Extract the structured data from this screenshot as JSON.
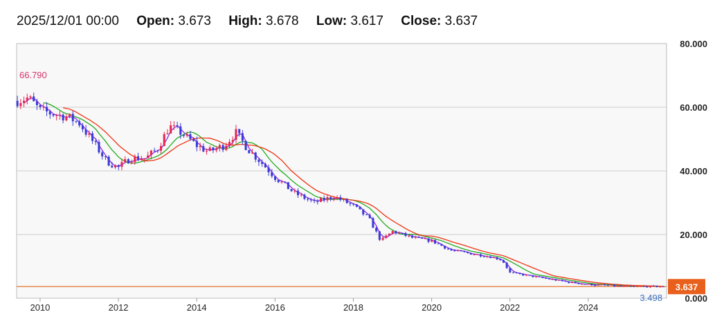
{
  "ohlc": {
    "date": "2025/12/01 00:00",
    "open_label": "Open:",
    "open": "3.673",
    "high_label": "High:",
    "high": "3.678",
    "low_label": "Low:",
    "low": "3.617",
    "close_label": "Close:",
    "close": "3.637"
  },
  "chart_data": {
    "type": "candlestick",
    "ylim": [
      0,
      80
    ],
    "y_ticks": [
      "80.000",
      "60.000",
      "40.000",
      "20.000",
      "0.000"
    ],
    "y_tick_values": [
      80,
      60,
      40,
      20,
      0
    ],
    "x_ticks": [
      "2010",
      "2012",
      "2014",
      "2016",
      "2018",
      "2020",
      "2022",
      "2024"
    ],
    "x_tick_values": [
      2010,
      2012,
      2014,
      2016,
      2018,
      2020,
      2022,
      2024
    ],
    "xlim": [
      2009.4,
      2026.0
    ],
    "grid": true,
    "last_price_label": "3.637",
    "last_price": 3.637,
    "max_label": "66.790",
    "max_value": 66.79,
    "max_x": 2009.7,
    "min_label": "3.498",
    "min_value": 3.498,
    "min_x": 2025.0,
    "colors": {
      "up": "#e8274f",
      "down": "#3b3bd6",
      "ma_short": "#8a2be2",
      "ma_mid": "#22aa22",
      "ma_long": "#ee3311",
      "last_line": "#e5732a",
      "last_badge": "#e8601c",
      "plot_bg": "#f8f8f8",
      "grid": "#cccccc",
      "max_text": "#d6336c",
      "min_text": "#3b6fc0"
    },
    "price_anchors": [
      [
        2009.4,
        62
      ],
      [
        2009.7,
        63
      ],
      [
        2010.0,
        59
      ],
      [
        2010.3,
        58
      ],
      [
        2010.7,
        57
      ],
      [
        2011.0,
        55
      ],
      [
        2011.3,
        50
      ],
      [
        2011.7,
        43
      ],
      [
        2012.0,
        41
      ],
      [
        2012.3,
        44
      ],
      [
        2012.7,
        44
      ],
      [
        2013.0,
        47
      ],
      [
        2013.3,
        54
      ],
      [
        2013.6,
        52
      ],
      [
        2014.0,
        48
      ],
      [
        2014.3,
        46
      ],
      [
        2014.7,
        48
      ],
      [
        2015.0,
        52
      ],
      [
        2015.3,
        47
      ],
      [
        2015.7,
        42
      ],
      [
        2016.0,
        38
      ],
      [
        2016.5,
        33
      ],
      [
        2017.0,
        30
      ],
      [
        2017.5,
        32
      ],
      [
        2018.0,
        29
      ],
      [
        2018.4,
        25
      ],
      [
        2018.7,
        18
      ],
      [
        2019.0,
        21
      ],
      [
        2019.5,
        19
      ],
      [
        2020.0,
        18
      ],
      [
        2020.5,
        15
      ],
      [
        2021.0,
        14
      ],
      [
        2021.5,
        13
      ],
      [
        2021.8,
        12
      ],
      [
        2022.0,
        8
      ],
      [
        2022.5,
        7
      ],
      [
        2023.0,
        6
      ],
      [
        2023.5,
        5
      ],
      [
        2024.0,
        4.3
      ],
      [
        2024.5,
        4.0
      ],
      [
        2025.0,
        3.6
      ],
      [
        2025.5,
        3.7
      ],
      [
        2025.9,
        3.64
      ]
    ]
  }
}
